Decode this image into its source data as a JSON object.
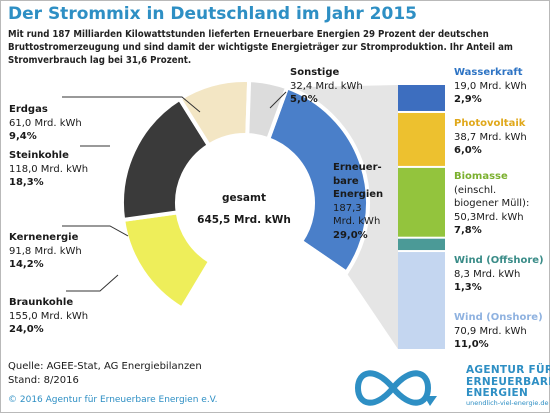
{
  "header": {
    "title": "Der Strommix in Deutschland im Jahr 2015",
    "subtitle": "Mit rund 187 Milliarden Kilowattstunden lieferten Erneuerbare Energien 29 Prozent der deutschen Bruttostromerzeugung und sind  damit der wichtigste Energieträger zur Stromproduktion. Ihr Anteil am Stromverbrauch lag bei 31,6 Prozent."
  },
  "center": {
    "label": "gesamt",
    "value": "645,5 Mrd. kWh"
  },
  "footer": {
    "source": "Quelle: AGEE-Stat, AG Energiebilanzen",
    "stand": "Stand: 8/2016",
    "copyright": "© 2016 Agentur für Erneuerbare Energien e.V."
  },
  "logo": {
    "line1": "AGENTUR FÜR",
    "line2": "ERNEUERBARE",
    "line3": "ENERGIEN",
    "url": "unendlich-viel-energie.de"
  },
  "labels": {
    "erdgas": {
      "name": "Erdgas",
      "value": "61,0 Mrd. kWh",
      "pct": "9,4%"
    },
    "steinkohle": {
      "name": "Steinkohle",
      "value": "118,0 Mrd. kWh",
      "pct": "18,3%"
    },
    "kernenergie": {
      "name": "Kernenergie",
      "value": "91,8 Mrd. kWh",
      "pct": "14,2%"
    },
    "braunkohle": {
      "name": "Braunkohle",
      "value": "155,0 Mrd. kWh",
      "pct": "24,0%"
    },
    "sonstige": {
      "name": "Sonstige",
      "value": "32,4 Mrd. kWh",
      "pct": "5,0%"
    },
    "ee": {
      "name1": "Erneuer-",
      "name2": "bare",
      "name3": "Energien",
      "value1": "187,3",
      "value2": "Mrd. kWh",
      "pct": "29,0%"
    },
    "wasserkraft": {
      "name": "Wasserkraft",
      "value": "19,0 Mrd. kWh",
      "pct": "2,9%"
    },
    "photovoltaik": {
      "name": "Photovoltaik",
      "value": "38,7 Mrd. kWh",
      "pct": "6,0%"
    },
    "biomasse": {
      "name": "Biomasse",
      "note1": "(einschl.",
      "note2": "biogener Müll):",
      "value": "50,3Mrd. kWh",
      "pct": "7,8%"
    },
    "wind_off": {
      "name": "Wind (Offshore)",
      "value": "8,3 Mrd. kWh",
      "pct": "1,3%"
    },
    "wind_on": {
      "name": "Wind (Onshore)",
      "value": "70,9 Mrd. kWh",
      "pct": "11,0%"
    }
  },
  "chart_data": [
    {
      "type": "pie",
      "total": 645.5,
      "unit": "Mrd. kWh",
      "categories": [
        "Erneuerbare Energien",
        "Braunkohle",
        "Kernenergie",
        "Steinkohle",
        "Erdgas",
        "Sonstige"
      ],
      "values": [
        187.3,
        155.0,
        91.8,
        118.0,
        61.0,
        32.4
      ],
      "percents": [
        29.0,
        24.0,
        14.2,
        18.3,
        9.4,
        5.0
      ],
      "colors": [
        "#4a7fc9",
        "#ffffff",
        "#eeee5a",
        "#3a3a3a",
        "#f3e6c4",
        "#dcdcdc"
      ]
    },
    {
      "type": "bar",
      "stacked": true,
      "categories": [
        "Wasserkraft",
        "Photovoltaik",
        "Biomasse",
        "Wind (Offshore)",
        "Wind (Onshore)"
      ],
      "values": [
        19.0,
        38.7,
        50.3,
        8.3,
        70.9
      ],
      "percents": [
        2.9,
        6.0,
        7.8,
        1.3,
        11.0
      ],
      "colors": [
        "#3d6ebf",
        "#edc12f",
        "#93c43d",
        "#4b9a97",
        "#c4d6f0"
      ],
      "name_colors": [
        "#2e74c4",
        "#e0a81b",
        "#7bb02e",
        "#3a8c88",
        "#8fb2e0"
      ]
    }
  ]
}
